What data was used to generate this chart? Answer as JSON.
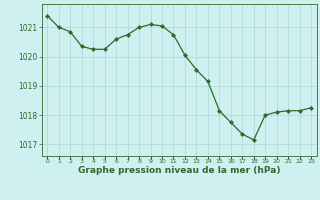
{
  "x": [
    0,
    1,
    2,
    3,
    4,
    5,
    6,
    7,
    8,
    9,
    10,
    11,
    12,
    13,
    14,
    15,
    16,
    17,
    18,
    19,
    20,
    21,
    22,
    23
  ],
  "y": [
    1021.4,
    1021.0,
    1020.85,
    1020.35,
    1020.25,
    1020.25,
    1020.6,
    1020.75,
    1021.0,
    1021.1,
    1021.05,
    1020.75,
    1020.05,
    1019.55,
    1019.15,
    1018.15,
    1017.75,
    1017.35,
    1017.15,
    1018.0,
    1018.1,
    1018.15,
    1018.15,
    1018.25
  ],
  "line_color": "#2d6a2d",
  "marker": "D",
  "marker_size": 2.0,
  "bg_color": "#cff0f0",
  "grid_color": "#a8d8d8",
  "ylabel_ticks": [
    1017,
    1018,
    1019,
    1020,
    1021
  ],
  "xlabel_label": "Graphe pression niveau de la mer (hPa)",
  "ylim": [
    1016.6,
    1021.8
  ],
  "xlim": [
    -0.5,
    23.5
  ],
  "tick_color": "#2d6a2d"
}
